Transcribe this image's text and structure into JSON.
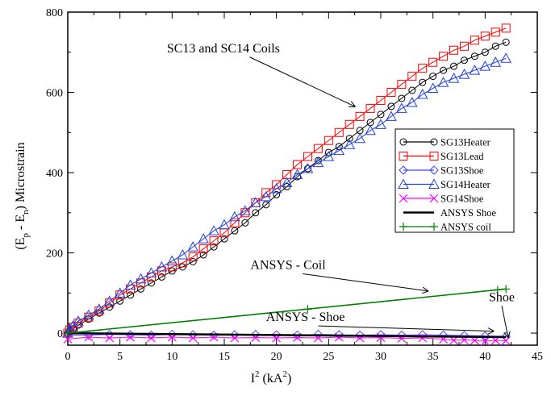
{
  "chart_data": {
    "type": "scatter",
    "xlabel": {
      "base": "I",
      "sup": "2",
      "unit_pre": " (kA",
      "unit_sup": "2",
      "unit_post": ")"
    },
    "ylabel": {
      "pre": "(E",
      "sub1": "p",
      "mid": " - E",
      "sub2": "n",
      "post": ") Microstrain"
    },
    "xlim": [
      0,
      45
    ],
    "ylim": [
      -30,
      800
    ],
    "xticks": [
      0,
      5,
      10,
      15,
      20,
      25,
      30,
      35,
      40,
      45
    ],
    "yticks": [
      0,
      200,
      400,
      600,
      800
    ],
    "grid": false,
    "legend_position": "right-middle",
    "legend": [
      "SG13Heater",
      "SG13Lead",
      "SG13Shoe",
      "SG14Heater",
      "SG14Shoe",
      "ANSYS Shoe",
      "ANSYS coil"
    ],
    "annotations": [
      {
        "text": "SC13 and SC14 Coils",
        "x": 9.5,
        "y": 700,
        "arrow_to": [
          27.5,
          565
        ]
      },
      {
        "text": "ANSYS - Coil",
        "x": 17.5,
        "y": 160,
        "arrow_to": [
          34.5,
          105
        ]
      },
      {
        "text": "ANSYS - Shoe",
        "x": 19,
        "y": 30,
        "arrow_to": [
          40.8,
          5
        ]
      },
      {
        "text": "Shoe",
        "x": 41.6,
        "y": 80,
        "arrow_to": [
          42.2,
          -10
        ]
      }
    ],
    "series": [
      {
        "name": "SG13Heater",
        "marker": "circle",
        "color": "#000000",
        "x": [
          0,
          0.2,
          0.5,
          1,
          2,
          3,
          4,
          5,
          6,
          7,
          8,
          9,
          10,
          11,
          12,
          13,
          14,
          15,
          16,
          17,
          18,
          19,
          20,
          21,
          22,
          23,
          24,
          25,
          26,
          27,
          28,
          29,
          30,
          31,
          32,
          33,
          34,
          35,
          36,
          37,
          38,
          39,
          40,
          41,
          42
        ],
        "y": [
          0,
          5,
          10,
          20,
          35,
          50,
          65,
          80,
          95,
          110,
          125,
          140,
          155,
          165,
          178,
          195,
          215,
          235,
          255,
          275,
          300,
          320,
          345,
          365,
          390,
          410,
          430,
          450,
          465,
          485,
          505,
          525,
          545,
          565,
          585,
          605,
          625,
          640,
          655,
          665,
          680,
          690,
          700,
          715,
          725
        ]
      },
      {
        "name": "SG13Lead",
        "marker": "square",
        "color": "#ff0000",
        "x": [
          0,
          0.2,
          0.5,
          1,
          2,
          3,
          4,
          5,
          6,
          7,
          8,
          9,
          10,
          11,
          12,
          13,
          14,
          15,
          16,
          17,
          18,
          19,
          20,
          21,
          22,
          23,
          24,
          25,
          26,
          27,
          28,
          29,
          30,
          31,
          32,
          33,
          34,
          35,
          36,
          37,
          38,
          39,
          40,
          41,
          42
        ],
        "y": [
          0,
          8,
          15,
          25,
          40,
          55,
          75,
          95,
          110,
          125,
          140,
          155,
          165,
          175,
          190,
          210,
          230,
          250,
          275,
          300,
          325,
          350,
          370,
          395,
          420,
          440,
          460,
          480,
          500,
          520,
          540,
          560,
          580,
          600,
          620,
          640,
          660,
          675,
          690,
          705,
          715,
          730,
          740,
          750,
          760
        ]
      },
      {
        "name": "SG13Shoe",
        "marker": "diamond",
        "color": "#4040ff",
        "x": [
          0,
          2,
          4,
          6,
          8,
          10,
          12,
          14,
          16,
          18,
          20,
          22,
          24,
          26,
          28,
          30,
          32,
          34,
          36,
          38,
          40,
          42
        ],
        "y": [
          -5,
          -5,
          -3,
          -4,
          -5,
          -3,
          -4,
          -5,
          -4,
          -3,
          -4,
          -5,
          -3,
          -4,
          -5,
          -4,
          -5,
          -4,
          -5,
          -6,
          -7,
          -8
        ]
      },
      {
        "name": "SG14Heater",
        "marker": "triangle",
        "color": "#2040e0",
        "x": [
          0,
          0.2,
          0.5,
          1,
          2,
          3,
          4,
          5,
          6,
          7,
          8,
          9,
          10,
          11,
          12,
          13,
          14,
          15,
          16,
          17,
          18,
          19,
          20,
          21,
          22,
          23,
          24,
          25,
          26,
          27,
          28,
          29,
          30,
          31,
          32,
          33,
          34,
          35,
          36,
          37,
          38,
          39,
          40,
          41,
          42
        ],
        "y": [
          0,
          10,
          18,
          30,
          45,
          60,
          80,
          100,
          120,
          135,
          150,
          165,
          180,
          195,
          215,
          235,
          255,
          270,
          290,
          305,
          325,
          340,
          360,
          375,
          395,
          410,
          425,
          440,
          455,
          470,
          485,
          505,
          520,
          540,
          560,
          575,
          595,
          610,
          625,
          635,
          645,
          655,
          665,
          675,
          685
        ]
      },
      {
        "name": "SG14Shoe",
        "marker": "x",
        "color": "#ff00ff",
        "x": [
          0,
          2,
          4,
          6,
          8,
          10,
          12,
          14,
          16,
          18,
          20,
          22,
          24,
          26,
          28,
          30,
          32,
          34,
          36,
          37,
          38,
          39,
          40,
          41,
          42
        ],
        "y": [
          -15,
          -10,
          -12,
          -10,
          -12,
          -10,
          -12,
          -10,
          -12,
          -11,
          -12,
          -11,
          -12,
          -10,
          -12,
          -11,
          -13,
          -12,
          -15,
          -18,
          -17,
          -18,
          -20,
          -18,
          -19
        ]
      },
      {
        "name": "ANSYS Shoe",
        "marker": "line",
        "color": "#000000",
        "x": [
          0,
          42
        ],
        "y": [
          0,
          -10
        ]
      },
      {
        "name": "ANSYS coil",
        "marker": "plus",
        "color": "#008000",
        "x": [
          0,
          23,
          41.2,
          42
        ],
        "y": [
          0,
          60,
          108,
          110
        ]
      }
    ]
  }
}
